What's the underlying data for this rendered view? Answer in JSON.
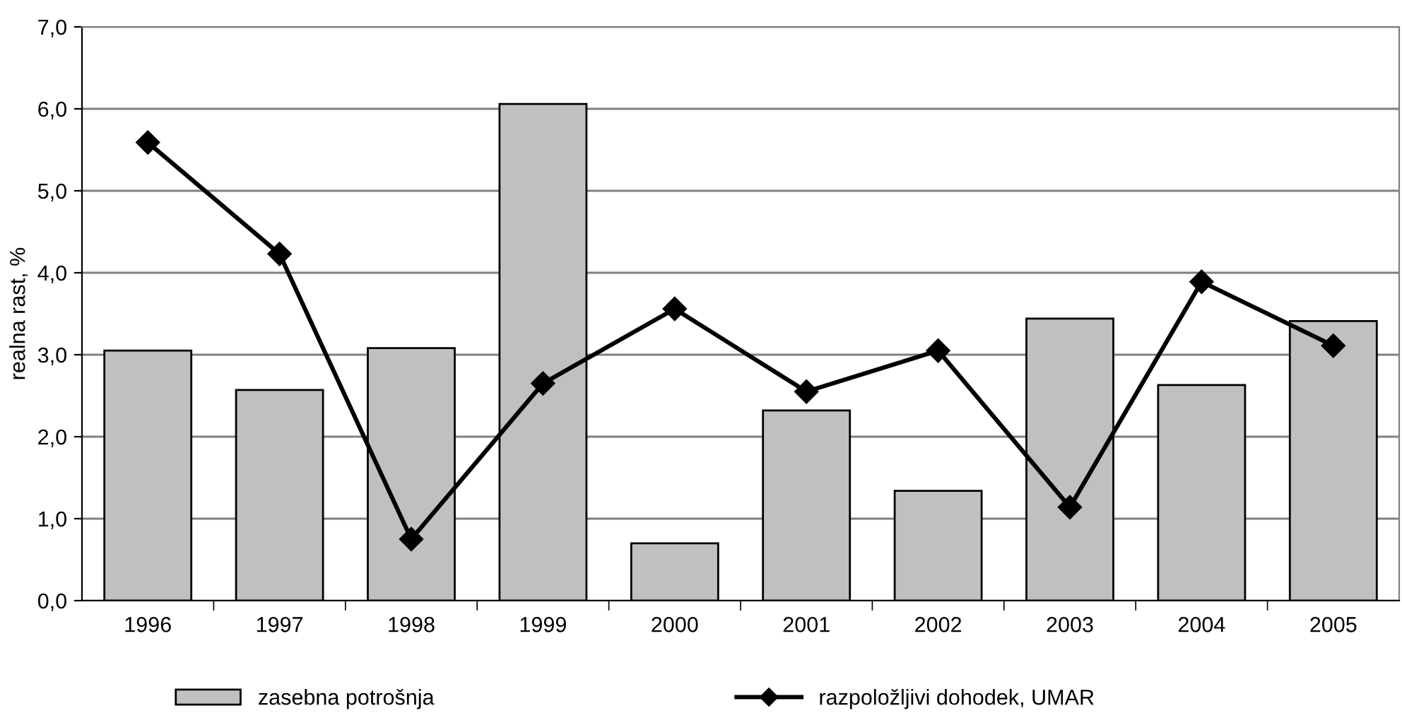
{
  "chart_data": {
    "type": "bar",
    "ylabel": "realna rast, %",
    "categories": [
      "1996",
      "1997",
      "1998",
      "1999",
      "2000",
      "2001",
      "2002",
      "2003",
      "2004",
      "2005"
    ],
    "series": [
      {
        "name": "zasebna potrošnja",
        "color": "#c0c0c0",
        "values": [
          3.05,
          2.57,
          3.08,
          6.06,
          0.7,
          2.32,
          1.34,
          3.44,
          2.63,
          3.41
        ]
      },
      {
        "name": "razpoložljivi dohodek, UMAR",
        "type": "line",
        "color": "#000000",
        "marker": "diamond",
        "values": [
          5.59,
          4.23,
          0.75,
          2.65,
          3.56,
          2.55,
          3.05,
          1.14,
          3.89,
          3.11
        ]
      }
    ],
    "ylim": [
      0,
      7
    ],
    "yticks": [
      {
        "value": 0,
        "label": "0,0"
      },
      {
        "value": 1,
        "label": "1,0"
      },
      {
        "value": 2,
        "label": "2,0"
      },
      {
        "value": 3,
        "label": "3,0"
      },
      {
        "value": 4,
        "label": "4,0"
      },
      {
        "value": 5,
        "label": "5,0"
      },
      {
        "value": 6,
        "label": "6,0"
      },
      {
        "value": 7,
        "label": "7,0"
      }
    ],
    "grid": "y",
    "legend": "bottom"
  }
}
